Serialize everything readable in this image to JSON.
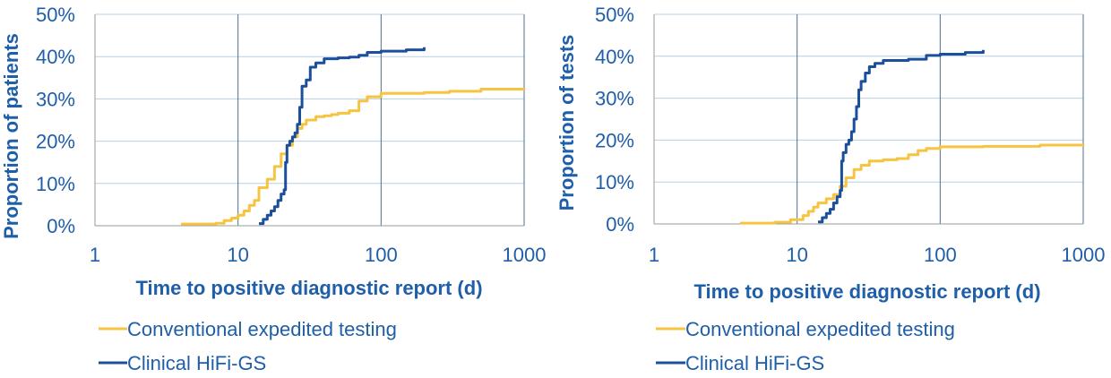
{
  "colors": {
    "conventional": "#f7c442",
    "hifi": "#1b4f9c",
    "text": "#1f5ea8"
  },
  "chart_data": [
    {
      "type": "line",
      "xscale": "log",
      "xlim": [
        1,
        1000
      ],
      "ylim": [
        0,
        50
      ],
      "xticks": [
        "1",
        "10",
        "100",
        "1000"
      ],
      "yticks": [
        "0%",
        "10%",
        "20%",
        "30%",
        "40%",
        "50%"
      ],
      "ylabel": "Proportion of patients",
      "xlabel": "Time to positive diagnostic report (d)",
      "legend_placement": "bottom",
      "series": [
        {
          "name": "Conventional expedited testing",
          "points": [
            [
              4,
              0.4
            ],
            [
              7,
              0.6
            ],
            [
              8,
              1.2
            ],
            [
              9,
              1.8
            ],
            [
              10,
              2.5
            ],
            [
              11,
              3.5
            ],
            [
              12,
              4.8
            ],
            [
              13,
              6
            ],
            [
              14,
              9
            ],
            [
              16,
              11
            ],
            [
              18,
              14
            ],
            [
              20,
              17
            ],
            [
              22,
              19
            ],
            [
              24,
              21
            ],
            [
              26,
              23
            ],
            [
              28,
              24
            ],
            [
              30,
              25
            ],
            [
              35,
              25.8
            ],
            [
              40,
              26
            ],
            [
              45,
              26.3
            ],
            [
              50,
              26.6
            ],
            [
              60,
              27.2
            ],
            [
              70,
              29.5
            ],
            [
              80,
              30.5
            ],
            [
              100,
              31.3
            ],
            [
              200,
              31.5
            ],
            [
              300,
              31.8
            ],
            [
              500,
              32.3
            ],
            [
              1000,
              32.5
            ]
          ]
        },
        {
          "name": "Clinical HiFi-GS",
          "points": [
            [
              14,
              0.5
            ],
            [
              15,
              1.5
            ],
            [
              16,
              2.5
            ],
            [
              17,
              3.5
            ],
            [
              18,
              4.5
            ],
            [
              19,
              6
            ],
            [
              20,
              7.5
            ],
            [
              21,
              8.5
            ],
            [
              21.5,
              15
            ],
            [
              22,
              19
            ],
            [
              23,
              20
            ],
            [
              24,
              21
            ],
            [
              25,
              22
            ],
            [
              26,
              24
            ],
            [
              27,
              28
            ],
            [
              28,
              33
            ],
            [
              30,
              34.5
            ],
            [
              32,
              37.5
            ],
            [
              35,
              38.5
            ],
            [
              40,
              39.5
            ],
            [
              50,
              39.7
            ],
            [
              60,
              39.9
            ],
            [
              70,
              40.3
            ],
            [
              80,
              41
            ],
            [
              100,
              41.3
            ],
            [
              150,
              41.6
            ],
            [
              200,
              42.2
            ]
          ]
        }
      ]
    },
    {
      "type": "line",
      "xscale": "log",
      "xlim": [
        1,
        1000
      ],
      "ylim": [
        0,
        50
      ],
      "xticks": [
        "1",
        "10",
        "100",
        "1000"
      ],
      "yticks": [
        "0%",
        "10%",
        "20%",
        "30%",
        "40%",
        "50%"
      ],
      "ylabel": "Proportion of tests",
      "xlabel": "Time to positive diagnostic report (d)",
      "legend_placement": "bottom",
      "series": [
        {
          "name": "Conventional expedited testing",
          "points": [
            [
              4,
              0.2
            ],
            [
              7,
              0.4
            ],
            [
              9,
              1
            ],
            [
              11,
              2
            ],
            [
              12,
              3
            ],
            [
              13,
              4
            ],
            [
              14,
              5
            ],
            [
              16,
              6
            ],
            [
              18,
              7
            ],
            [
              20,
              9
            ],
            [
              22,
              11
            ],
            [
              25,
              13
            ],
            [
              28,
              14
            ],
            [
              32,
              15
            ],
            [
              40,
              15.3
            ],
            [
              50,
              15.6
            ],
            [
              60,
              16.5
            ],
            [
              70,
              17.5
            ],
            [
              80,
              18
            ],
            [
              100,
              18.4
            ],
            [
              200,
              18.5
            ],
            [
              500,
              18.8
            ],
            [
              1000,
              19
            ]
          ]
        },
        {
          "name": "Clinical HiFi-GS",
          "points": [
            [
              14,
              0.5
            ],
            [
              15,
              1.5
            ],
            [
              16,
              2.5
            ],
            [
              17,
              3.5
            ],
            [
              18,
              5
            ],
            [
              19,
              6.5
            ],
            [
              20,
              8
            ],
            [
              20.5,
              15
            ],
            [
              21,
              17
            ],
            [
              22,
              19
            ],
            [
              23,
              20
            ],
            [
              24,
              22
            ],
            [
              25,
              25
            ],
            [
              26,
              28
            ],
            [
              27,
              32
            ],
            [
              28,
              34
            ],
            [
              30,
              36
            ],
            [
              32,
              37.5
            ],
            [
              35,
              38.3
            ],
            [
              40,
              39
            ],
            [
              60,
              39.3
            ],
            [
              80,
              40.2
            ],
            [
              100,
              40.5
            ],
            [
              150,
              40.9
            ],
            [
              200,
              41.5
            ]
          ]
        }
      ]
    }
  ]
}
